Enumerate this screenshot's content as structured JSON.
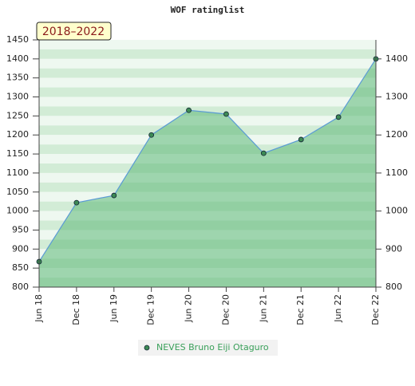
{
  "chart_data": {
    "type": "area",
    "title": "WOF ratinglist",
    "annotation": "2018–2022",
    "categories": [
      "Jun 18",
      "Dec 18",
      "Jun 19",
      "Dec 19",
      "Jun 20",
      "Dec 20",
      "Jun 21",
      "Dec 21",
      "Jun 22",
      "Dec 22"
    ],
    "series": [
      {
        "name": "NEVES Bruno Eiji Otaguro",
        "color": "#5b9bd5",
        "fill": "#5cb878",
        "marker_color": "#3d8a55",
        "values": [
          867,
          1022,
          1041,
          1200,
          1265,
          1255,
          1152,
          1188,
          1247,
          1400
        ]
      }
    ],
    "ylim": [
      800,
      1450
    ],
    "yticks": [
      800,
      850,
      900,
      950,
      1000,
      1050,
      1100,
      1150,
      1200,
      1250,
      1300,
      1350,
      1400,
      1450
    ],
    "y2lim": [
      800,
      1450
    ],
    "y2ticks": [
      800,
      900,
      1000,
      1100,
      1200,
      1300,
      1400
    ],
    "grid": true
  }
}
